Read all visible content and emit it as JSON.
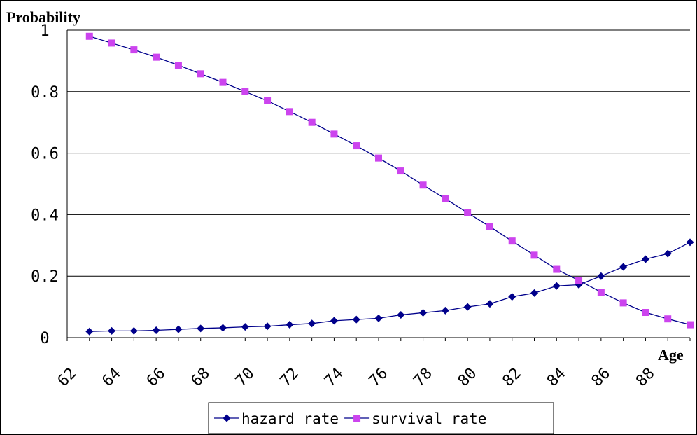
{
  "chart_data": {
    "type": "line",
    "ylabel": "Probability",
    "xlabel": "Age",
    "x": [
      63,
      64,
      65,
      66,
      67,
      68,
      69,
      70,
      71,
      72,
      73,
      74,
      75,
      76,
      77,
      78,
      79,
      80,
      81,
      82,
      83,
      84,
      85,
      86,
      87,
      88,
      89,
      90
    ],
    "xtick_labels": [
      "62",
      "64",
      "66",
      "68",
      "70",
      "72",
      "74",
      "76",
      "78",
      "80",
      "82",
      "84",
      "86",
      "88"
    ],
    "xtick_values": [
      62,
      64,
      66,
      68,
      70,
      72,
      74,
      76,
      78,
      80,
      82,
      84,
      86,
      88
    ],
    "ytick_labels": [
      "0",
      "0.2",
      "0.4",
      "0.6",
      "0.8",
      "1"
    ],
    "ytick_values": [
      0,
      0.2,
      0.4,
      0.6,
      0.8,
      1
    ],
    "ylim": [
      0,
      1
    ],
    "xlim": [
      62,
      90
    ],
    "grid": true,
    "legend_position": "bottom-center",
    "series": [
      {
        "name": "hazard rate",
        "color": "#00008b",
        "marker": "diamond",
        "values": [
          0.02,
          0.022,
          0.022,
          0.024,
          0.027,
          0.03,
          0.032,
          0.035,
          0.037,
          0.042,
          0.046,
          0.055,
          0.059,
          0.063,
          0.074,
          0.081,
          0.088,
          0.1,
          0.11,
          0.133,
          0.145,
          0.168,
          0.172,
          0.2,
          0.23,
          0.255,
          0.273,
          0.31
        ]
      },
      {
        "name": "survival rate",
        "color": "#cc44ee",
        "marker": "square",
        "values": [
          0.98,
          0.958,
          0.936,
          0.912,
          0.886,
          0.858,
          0.83,
          0.8,
          0.77,
          0.735,
          0.7,
          0.662,
          0.624,
          0.584,
          0.542,
          0.496,
          0.452,
          0.406,
          0.361,
          0.314,
          0.268,
          0.222,
          0.186,
          0.148,
          0.113,
          0.082,
          0.061,
          0.042
        ]
      }
    ]
  }
}
